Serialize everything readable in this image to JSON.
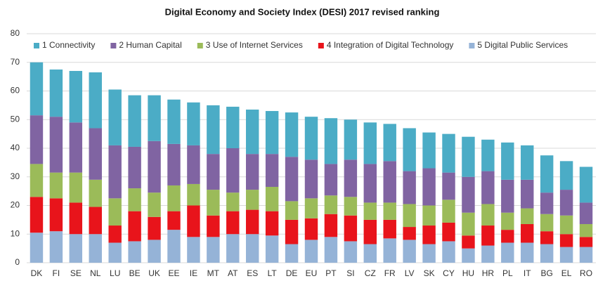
{
  "chart_data": {
    "type": "stacked_bar",
    "title": "Digital Economy and Society Index (DESI) 2017 revised ranking",
    "categories": [
      "DK",
      "FI",
      "SE",
      "NL",
      "LU",
      "BE",
      "UK",
      "EE",
      "IE",
      "MT",
      "AT",
      "ES",
      "LT",
      "DE",
      "EU",
      "PT",
      "SI",
      "CZ",
      "FR",
      "LV",
      "SK",
      "CY",
      "HU",
      "HR",
      "PL",
      "IT",
      "BG",
      "EL",
      "RO"
    ],
    "series": [
      {
        "name": "1 Connectivity",
        "color": "#4bacc6",
        "values": [
          18.5,
          16.5,
          18,
          19.5,
          19.5,
          18,
          16,
          15.5,
          15,
          17,
          14.5,
          15.5,
          15,
          15.5,
          15,
          16,
          14,
          14.5,
          13,
          15,
          12.5,
          13.5,
          14,
          11,
          13,
          12,
          13,
          10,
          12.5
        ]
      },
      {
        "name": "2 Human Capital",
        "color": "#8064a2",
        "values": [
          17,
          19.5,
          17.5,
          18,
          18.5,
          14.5,
          18,
          14.5,
          13.5,
          12.5,
          15.5,
          12.5,
          11.5,
          15.5,
          13.5,
          11,
          13,
          13.5,
          14.5,
          11.5,
          13,
          9.5,
          12.5,
          11.5,
          11.5,
          10,
          7.5,
          9,
          7.5
        ]
      },
      {
        "name": "3 Use of Internet Services",
        "color": "#9bbb59",
        "values": [
          11.5,
          9,
          10.5,
          9.5,
          9.5,
          8,
          8.5,
          9,
          7.5,
          9,
          6.5,
          7,
          8.5,
          6.5,
          7,
          6.5,
          6.5,
          6,
          6,
          8,
          7,
          8,
          8,
          7.5,
          6,
          5.5,
          6,
          6.5,
          4.5
        ]
      },
      {
        "name": "4 Integration of Digital Technology",
        "color": "#e8141b",
        "values": [
          12.5,
          11.5,
          11,
          9.5,
          6,
          10.5,
          8,
          6.5,
          11,
          7.5,
          8,
          8.5,
          8.5,
          8.5,
          7.5,
          8,
          9,
          8.5,
          6.5,
          4.5,
          6.5,
          6.5,
          4.5,
          7,
          4.5,
          6.5,
          4.5,
          4.5,
          3.5
        ]
      },
      {
        "name": "5 Digital Public Services",
        "color": "#95b3d7",
        "values": [
          10.5,
          11,
          10,
          10,
          7,
          7.5,
          8,
          11.5,
          9,
          9,
          10,
          10,
          9.5,
          6.5,
          8,
          9,
          7.5,
          6.5,
          8.5,
          8,
          6.5,
          7.5,
          5,
          6,
          7,
          7,
          6.5,
          5.5,
          5.5
        ]
      }
    ],
    "ylim": [
      0,
      80
    ],
    "yticks": [
      0,
      10,
      20,
      30,
      40,
      50,
      60,
      70,
      80
    ],
    "grid": true,
    "legend": "top"
  }
}
